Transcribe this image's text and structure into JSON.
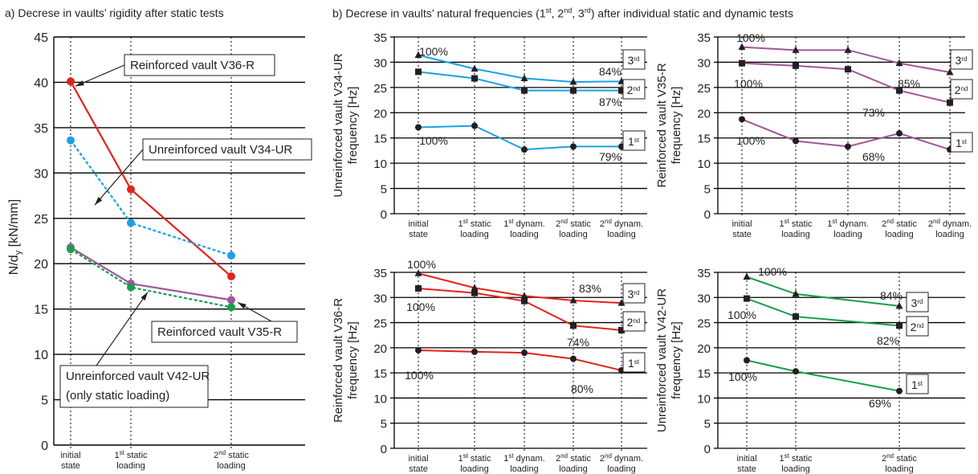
{
  "panel_a_title": "a) Decrese in vaults’ rigidity after static tests",
  "panel_b_title_parts": [
    "b) Decrese in vaults’ natural frequencies (1",
    "st",
    ", 2",
    "nd",
    ", 3",
    "rd",
    ") after individual static and dynamic tests"
  ],
  "colors": {
    "blue": "#1ba1e2",
    "red": "#e2231a",
    "purple": "#a0559c",
    "green": "#16a04a",
    "grid": "#000000",
    "mark": "#231f20"
  },
  "chart_data": [
    {
      "id": "a",
      "type": "line",
      "ylabel": [
        "N/d",
        "y",
        " [kN/mm]"
      ],
      "ylim": [
        0,
        45
      ],
      "yticks": [
        0,
        5,
        10,
        15,
        20,
        25,
        30,
        35,
        40,
        45
      ],
      "x_labels": [
        [
          "initial",
          "state"
        ],
        [
          "1^st static",
          "loading"
        ],
        [
          "2^nd static",
          "loading"
        ]
      ],
      "grid": "horizontal + dotted vertical",
      "series": [
        {
          "name": "Reinforced vault V36-R",
          "color": "red",
          "dash": false,
          "values": [
            40.1,
            28.2,
            18.6
          ]
        },
        {
          "name": "Unreinforced vault V34-UR",
          "color": "blue",
          "dash": true,
          "values": [
            33.6,
            24.5,
            20.9
          ]
        },
        {
          "name": "Reinforced vault V35-R",
          "color": "purple",
          "dash": false,
          "values": [
            21.8,
            17.8,
            16.0
          ]
        },
        {
          "name": "Unreinforced vault V42-UR (only static loading)",
          "color": "green",
          "dash": true,
          "values": [
            21.6,
            17.4,
            15.2
          ]
        }
      ],
      "callouts": [
        {
          "text": [
            "Reinforced vault V36-R"
          ]
        },
        {
          "text": [
            "Unreinforced vault V34-UR"
          ]
        },
        {
          "text": [
            "Reinforced vault V35-R"
          ]
        },
        {
          "text": [
            "Unreinforced vault V42-UR",
            "(only static loading)"
          ]
        }
      ]
    },
    {
      "id": "b1",
      "type": "line",
      "color": "blue",
      "ylabel": [
        "Unreinforced vault V34-UR",
        "frequency [Hz]"
      ],
      "ylim": [
        0,
        35
      ],
      "yticks": [
        0,
        5,
        10,
        15,
        20,
        25,
        30,
        35
      ],
      "x_labels": [
        [
          "initial",
          "state"
        ],
        [
          "1^st static",
          "loading"
        ],
        [
          "1^st dynam.",
          "loading"
        ],
        [
          "2^nd static",
          "loading"
        ],
        [
          "2^nd dynam.",
          "loading"
        ]
      ],
      "series": [
        {
          "name": "3rd",
          "marker": "triangle",
          "values": [
            31.4,
            28.7,
            26.8,
            26.1,
            26.2
          ]
        },
        {
          "name": "2nd",
          "marker": "square",
          "values": [
            28.1,
            26.8,
            24.4,
            24.4,
            24.4
          ]
        },
        {
          "name": "1st",
          "marker": "circle",
          "values": [
            17.1,
            17.4,
            12.7,
            13.3,
            13.3
          ]
        }
      ],
      "mode_labels": [
        "3^rd",
        "2^nd",
        "1^st"
      ],
      "percent_labels": [
        "100%",
        "100%",
        "84%",
        "87%",
        "79%"
      ]
    },
    {
      "id": "b2",
      "type": "line",
      "color": "purple",
      "ylabel": [
        "Reinforced vault V35-R",
        "frequency [Hz]"
      ],
      "ylim": [
        0,
        35
      ],
      "yticks": [
        0,
        5,
        10,
        15,
        20,
        25,
        30,
        35
      ],
      "x_labels": [
        [
          "initial",
          "state"
        ],
        [
          "1^st static",
          "loading"
        ],
        [
          "1^st dynam.",
          "loading"
        ],
        [
          "2^nd static",
          "loading"
        ],
        [
          "2^nd dynam.",
          "loading"
        ]
      ],
      "series": [
        {
          "name": "3rd",
          "marker": "triangle",
          "values": [
            33.0,
            32.4,
            32.4,
            29.8,
            28.0
          ]
        },
        {
          "name": "2nd",
          "marker": "square",
          "values": [
            29.8,
            29.3,
            28.6,
            24.4,
            22.0
          ]
        },
        {
          "name": "1st",
          "marker": "circle",
          "values": [
            18.7,
            14.4,
            13.3,
            15.9,
            12.7
          ]
        }
      ],
      "mode_labels": [
        "3^rd",
        "2^nd",
        "1^st"
      ],
      "percent_labels": [
        "100%",
        "100%",
        "100%",
        "85%",
        "73%",
        "68%"
      ]
    },
    {
      "id": "b3",
      "type": "line",
      "color": "red",
      "ylabel": [
        "Reinforced vault V36-R",
        "frequency [Hz]"
      ],
      "ylim": [
        0,
        35
      ],
      "yticks": [
        0,
        5,
        10,
        15,
        20,
        25,
        30,
        35
      ],
      "x_labels": [
        [
          "initial",
          "state"
        ],
        [
          "1^st static",
          "loading"
        ],
        [
          "1^st dynam.",
          "loading"
        ],
        [
          "2^nd static",
          "loading"
        ],
        [
          "2^nd dynam.",
          "loading"
        ]
      ],
      "series": [
        {
          "name": "3rd",
          "marker": "triangle",
          "values": [
            34.8,
            31.9,
            30.3,
            29.4,
            28.9
          ]
        },
        {
          "name": "2nd",
          "marker": "square",
          "values": [
            31.8,
            30.9,
            29.3,
            24.4,
            23.5
          ]
        },
        {
          "name": "1st",
          "marker": "circle",
          "values": [
            19.5,
            19.2,
            19.0,
            17.8,
            15.5
          ]
        }
      ],
      "mode_labels": [
        "3^rd",
        "2^nd",
        "1^st"
      ],
      "percent_labels": [
        "100%",
        "100%",
        "100%",
        "83%",
        "74%",
        "80%"
      ]
    },
    {
      "id": "b4",
      "type": "line",
      "color": "green",
      "ylabel": [
        "Unreinforced vault V42-UR",
        "frequency [Hz]"
      ],
      "ylim": [
        0,
        35
      ],
      "yticks": [
        0,
        5,
        10,
        15,
        20,
        25,
        30,
        35
      ],
      "x_labels": [
        [
          "initial",
          "state"
        ],
        [
          "1^st static",
          "loading"
        ],
        [
          "2^nd static",
          "loading"
        ]
      ],
      "series": [
        {
          "name": "3rd",
          "marker": "triangle",
          "values": [
            34.1,
            30.7,
            28.3
          ]
        },
        {
          "name": "2nd",
          "marker": "square",
          "values": [
            29.8,
            26.2,
            24.4
          ]
        },
        {
          "name": "1st",
          "marker": "circle",
          "values": [
            17.5,
            15.3,
            11.4
          ]
        }
      ],
      "mode_labels": [
        "3^rd",
        "2^nd",
        "1^st"
      ],
      "percent_labels": [
        "100%",
        "100%",
        "100%",
        "84%",
        "82%",
        "69%"
      ]
    }
  ]
}
